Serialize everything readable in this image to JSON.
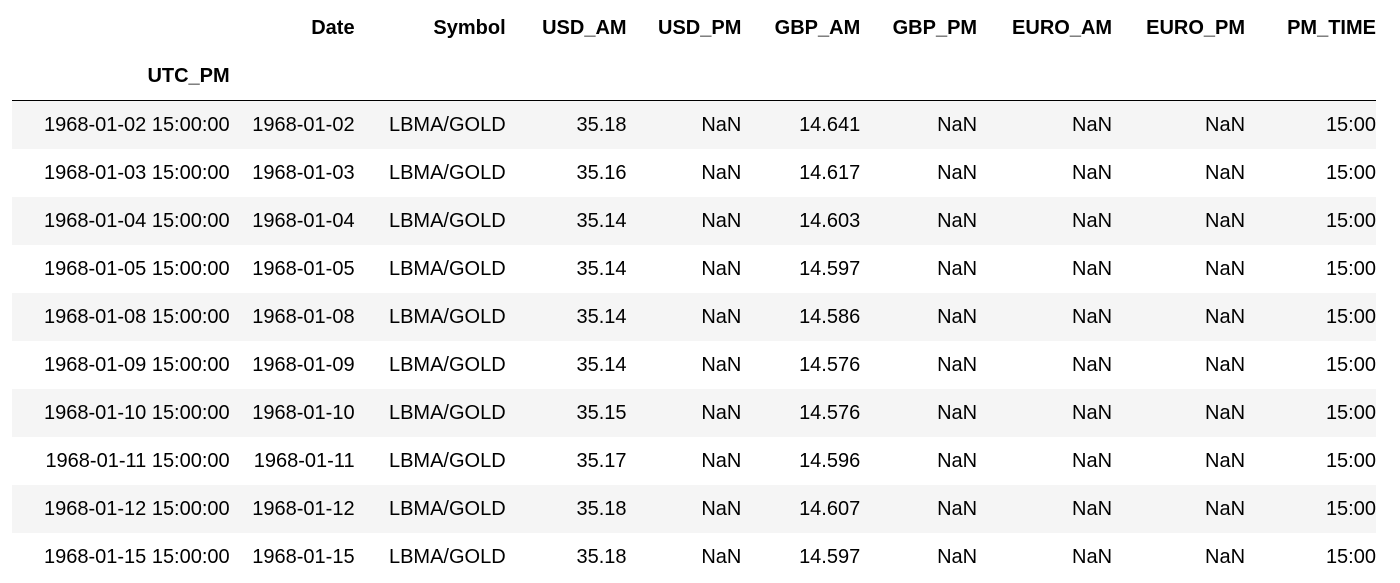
{
  "table": {
    "index_name": "UTC_PM",
    "columns": [
      "Date",
      "Symbol",
      "USD_AM",
      "USD_PM",
      "GBP_AM",
      "GBP_PM",
      "EURO_AM",
      "EURO_PM",
      "PM_TIME"
    ],
    "rows": [
      {
        "index": "1968-01-02 15:00:00",
        "cells": [
          "1968-01-02",
          "LBMA/GOLD",
          "35.18",
          "NaN",
          "14.641",
          "NaN",
          "NaN",
          "NaN",
          "15:00"
        ]
      },
      {
        "index": "1968-01-03 15:00:00",
        "cells": [
          "1968-01-03",
          "LBMA/GOLD",
          "35.16",
          "NaN",
          "14.617",
          "NaN",
          "NaN",
          "NaN",
          "15:00"
        ]
      },
      {
        "index": "1968-01-04 15:00:00",
        "cells": [
          "1968-01-04",
          "LBMA/GOLD",
          "35.14",
          "NaN",
          "14.603",
          "NaN",
          "NaN",
          "NaN",
          "15:00"
        ]
      },
      {
        "index": "1968-01-05 15:00:00",
        "cells": [
          "1968-01-05",
          "LBMA/GOLD",
          "35.14",
          "NaN",
          "14.597",
          "NaN",
          "NaN",
          "NaN",
          "15:00"
        ]
      },
      {
        "index": "1968-01-08 15:00:00",
        "cells": [
          "1968-01-08",
          "LBMA/GOLD",
          "35.14",
          "NaN",
          "14.586",
          "NaN",
          "NaN",
          "NaN",
          "15:00"
        ]
      },
      {
        "index": "1968-01-09 15:00:00",
        "cells": [
          "1968-01-09",
          "LBMA/GOLD",
          "35.14",
          "NaN",
          "14.576",
          "NaN",
          "NaN",
          "NaN",
          "15:00"
        ]
      },
      {
        "index": "1968-01-10 15:00:00",
        "cells": [
          "1968-01-10",
          "LBMA/GOLD",
          "35.15",
          "NaN",
          "14.576",
          "NaN",
          "NaN",
          "NaN",
          "15:00"
        ]
      },
      {
        "index": "1968-01-11 15:00:00",
        "cells": [
          "1968-01-11",
          "LBMA/GOLD",
          "35.17",
          "NaN",
          "14.596",
          "NaN",
          "NaN",
          "NaN",
          "15:00"
        ]
      },
      {
        "index": "1968-01-12 15:00:00",
        "cells": [
          "1968-01-12",
          "LBMA/GOLD",
          "35.18",
          "NaN",
          "14.607",
          "NaN",
          "NaN",
          "NaN",
          "15:00"
        ]
      },
      {
        "index": "1968-01-15 15:00:00",
        "cells": [
          "1968-01-15",
          "LBMA/GOLD",
          "35.18",
          "NaN",
          "14.597",
          "NaN",
          "NaN",
          "NaN",
          "15:00"
        ]
      }
    ]
  }
}
